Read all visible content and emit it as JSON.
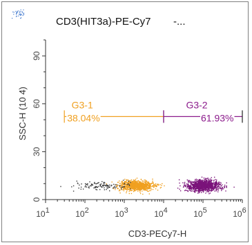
{
  "window": {
    "title": "CD3(HIT3a)-PE-Cy7",
    "title_suffix": "-...",
    "app_icon": "scatter-plot-icon"
  },
  "chart_data": {
    "type": "scatter",
    "xlabel": "CD3-PECy7-H",
    "ylabel": "SSC-H (10 4)",
    "x_scale": "log",
    "xlim": [
      10,
      1000000
    ],
    "ylim": [
      0,
      100
    ],
    "x_ticks": [
      {
        "base": "10",
        "exp": "1",
        "value": 10
      },
      {
        "base": "10",
        "exp": "2",
        "value": 100
      },
      {
        "base": "10",
        "exp": "3",
        "value": 1000
      },
      {
        "base": "10",
        "exp": "4",
        "value": 10000
      },
      {
        "base": "10",
        "exp": "5",
        "value": 100000
      },
      {
        "base": "10",
        "exp": "6",
        "value": 1000000
      }
    ],
    "y_ticks": [
      {
        "label": "0",
        "value": 0
      },
      {
        "label": "30",
        "value": 30
      },
      {
        "label": "60",
        "value": 60
      },
      {
        "label": "90",
        "value": 90
      }
    ],
    "gates": [
      {
        "name": "G3-1",
        "percent": "38.04%",
        "x_range": [
          30,
          10000
        ],
        "y": 52,
        "color": "#f0a020"
      },
      {
        "name": "G3-2",
        "percent": "61.93%",
        "x_range": [
          10000,
          1000000
        ],
        "y": 52,
        "color": "#8b1a8b"
      }
    ],
    "populations": [
      {
        "gate": "G3-1",
        "x_center": 2000,
        "y_center": 9,
        "x_log_spread": 0.22,
        "y_spread": 1.6,
        "count": 900,
        "color": "#f0a020"
      },
      {
        "gate": "G3-2",
        "x_center": 100000,
        "y_center": 9,
        "x_log_spread": 0.22,
        "y_spread": 1.6,
        "count": 1100,
        "color": "#7a137a"
      },
      {
        "gate": "G3-1",
        "x_center": 250,
        "y_center": 9,
        "x_log_spread": 0.35,
        "y_spread": 1.4,
        "count": 120,
        "color": "#3a3a3a"
      }
    ],
    "colors": {
      "axis": "#333333",
      "tick_text": "#444444"
    }
  }
}
